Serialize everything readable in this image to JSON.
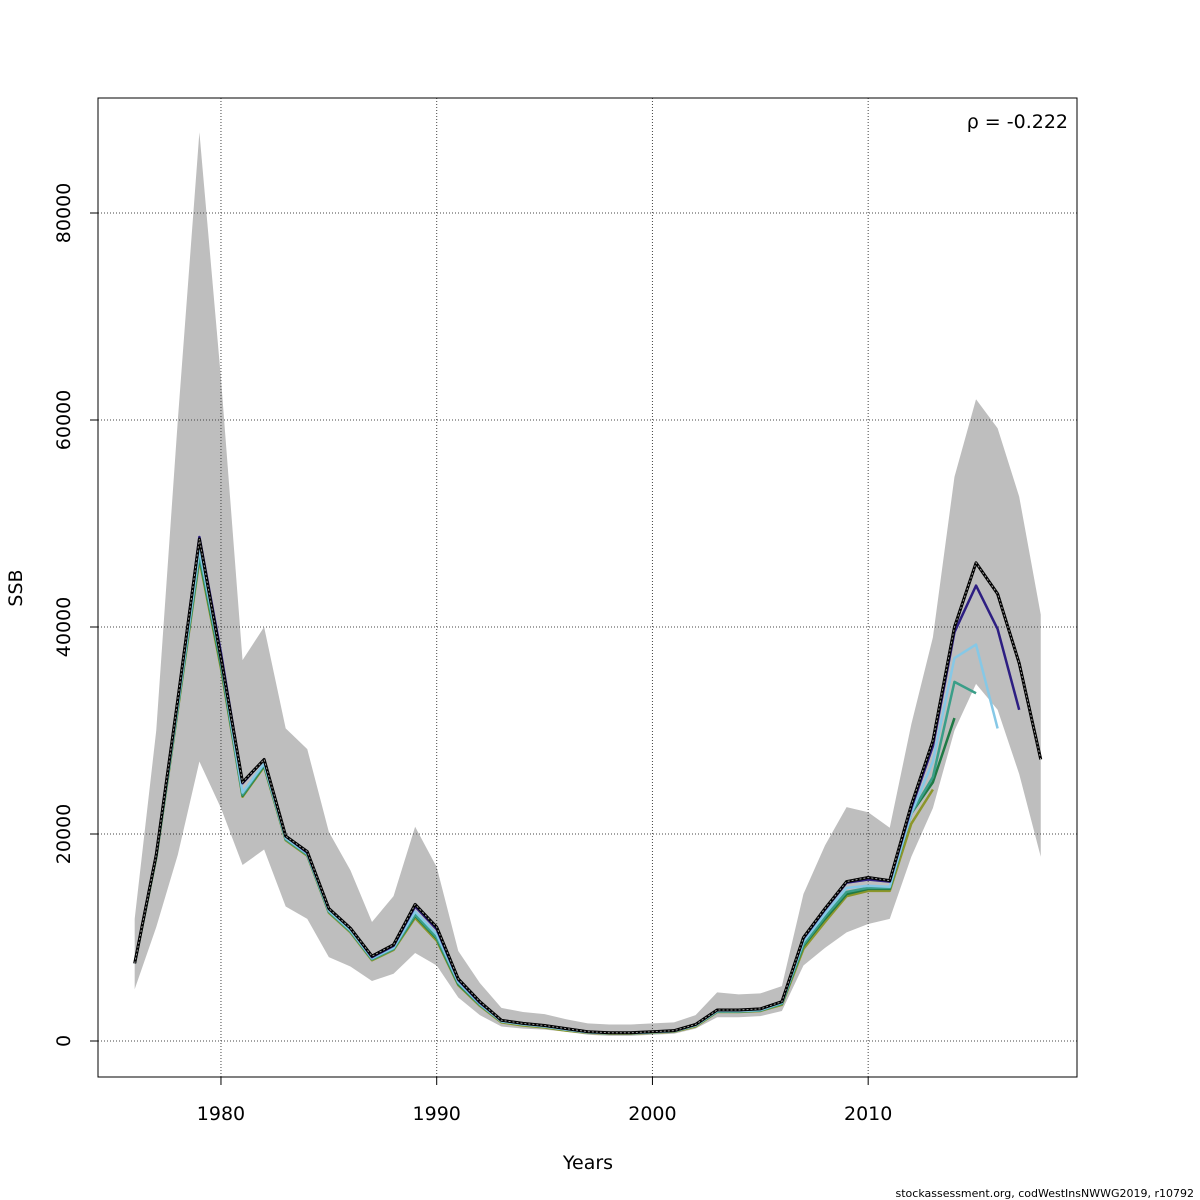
{
  "chart_data": {
    "type": "line",
    "xlabel": "Years",
    "ylabel": "SSB",
    "annotation": "ρ = -0.222",
    "footer": "stockassessment.org, codWestInsNWWG2019, r10792",
    "x": [
      1976,
      1977,
      1978,
      1979,
      1980,
      1981,
      1982,
      1983,
      1984,
      1985,
      1986,
      1987,
      1988,
      1989,
      1990,
      1991,
      1992,
      1993,
      1994,
      1995,
      1996,
      1997,
      1998,
      1999,
      2000,
      2001,
      2002,
      2003,
      2004,
      2005,
      2006,
      2007,
      2008,
      2009,
      2010,
      2011,
      2012,
      2013,
      2014,
      2015,
      2016,
      2017,
      2018
    ],
    "band": {
      "color": "#bebebe",
      "lower": [
        5000,
        11000,
        18000,
        27000,
        22500,
        17000,
        18500,
        13000,
        11800,
        8100,
        7200,
        5800,
        6500,
        8500,
        7300,
        4200,
        2500,
        1400,
        1200,
        1100,
        900,
        600,
        500,
        500,
        600,
        700,
        1200,
        2300,
        2300,
        2400,
        2900,
        7300,
        9000,
        10500,
        11300,
        11800,
        17800,
        22500,
        30000,
        34500,
        32000,
        25800,
        17800
      ],
      "upper": [
        11800,
        30000,
        60000,
        87800,
        64000,
        36800,
        40000,
        30200,
        28200,
        20200,
        16500,
        11500,
        14000,
        20700,
        16800,
        8700,
        5600,
        3200,
        2800,
        2600,
        2100,
        1700,
        1600,
        1600,
        1700,
        1800,
        2500,
        4700,
        4500,
        4600,
        5300,
        14200,
        18900,
        22600,
        22100,
        20600,
        30600,
        39000,
        54500,
        62000,
        59200,
        52600,
        41200
      ]
    },
    "series": [
      {
        "color": "#000000",
        "values": [
          7500,
          18000,
          33000,
          48500,
          37000,
          25000,
          27200,
          19800,
          18300,
          12800,
          10900,
          8200,
          9300,
          13200,
          11000,
          6000,
          3800,
          2000,
          1700,
          1500,
          1200,
          900,
          800,
          800,
          900,
          1000,
          1600,
          3000,
          3000,
          3100,
          3800,
          10000,
          12800,
          15400,
          15800,
          15500,
          22800,
          29000,
          40000,
          46200,
          43200,
          36500,
          27200
        ]
      },
      {
        "color": "#2d1e82",
        "values": [
          7500,
          18000,
          33000,
          48700,
          37500,
          24900,
          27200,
          19800,
          18200,
          12800,
          10900,
          8100,
          9200,
          13000,
          10800,
          5900,
          3700,
          2000,
          1700,
          1500,
          1200,
          900,
          800,
          800,
          900,
          1000,
          1600,
          3000,
          3000,
          3100,
          3800,
          9900,
          12700,
          15300,
          15600,
          15400,
          22500,
          28500,
          39500,
          44000,
          39800,
          32000,
          null
        ]
      },
      {
        "color": "#86c8e6",
        "values": [
          7500,
          17900,
          32500,
          47500,
          36800,
          24000,
          26800,
          19600,
          18100,
          12600,
          10700,
          8000,
          9000,
          12500,
          10300,
          5700,
          3600,
          1900,
          1600,
          1400,
          1100,
          850,
          750,
          750,
          850,
          950,
          1500,
          2900,
          2900,
          3000,
          3700,
          9600,
          12300,
          14800,
          15000,
          14900,
          22000,
          27000,
          37000,
          38300,
          30200,
          null,
          null
        ]
      },
      {
        "color": "#3a9e88",
        "values": [
          7500,
          17800,
          32300,
          47000,
          36500,
          23800,
          26700,
          19500,
          18000,
          12500,
          10600,
          7900,
          8900,
          12200,
          10000,
          5600,
          3500,
          1900,
          1600,
          1400,
          1100,
          850,
          750,
          750,
          850,
          950,
          1500,
          2850,
          2850,
          2950,
          3600,
          9300,
          12000,
          14400,
          14800,
          14800,
          22000,
          25500,
          34700,
          33600,
          null,
          null,
          null
        ]
      },
      {
        "color": "#1f7a45",
        "values": [
          7500,
          17800,
          32200,
          46800,
          36300,
          23700,
          26600,
          19500,
          18000,
          12500,
          10600,
          7900,
          8900,
          12100,
          9900,
          5500,
          3500,
          1900,
          1600,
          1400,
          1100,
          850,
          750,
          750,
          850,
          950,
          1500,
          2850,
          2850,
          2950,
          3600,
          9200,
          11800,
          14200,
          14700,
          14700,
          22000,
          25000,
          31200,
          null,
          null,
          null,
          null
        ]
      },
      {
        "color": "#8c962a",
        "values": [
          7500,
          17700,
          32000,
          46500,
          36000,
          23600,
          26500,
          19400,
          17900,
          12400,
          10500,
          7800,
          8800,
          11900,
          9700,
          5400,
          3400,
          1800,
          1500,
          1300,
          1000,
          800,
          700,
          700,
          800,
          900,
          1400,
          2800,
          2800,
          2900,
          3500,
          8900,
          11500,
          14000,
          14500,
          14500,
          21000,
          24300,
          null,
          null,
          null,
          null,
          null
        ]
      }
    ],
    "xlim": [
      1974.3,
      2019.68
    ],
    "ylim": [
      -3478,
      91111
    ],
    "xticks": [
      1980,
      1990,
      2000,
      2010
    ],
    "yticks": [
      0,
      20000,
      40000,
      60000,
      80000
    ],
    "grid": true
  }
}
